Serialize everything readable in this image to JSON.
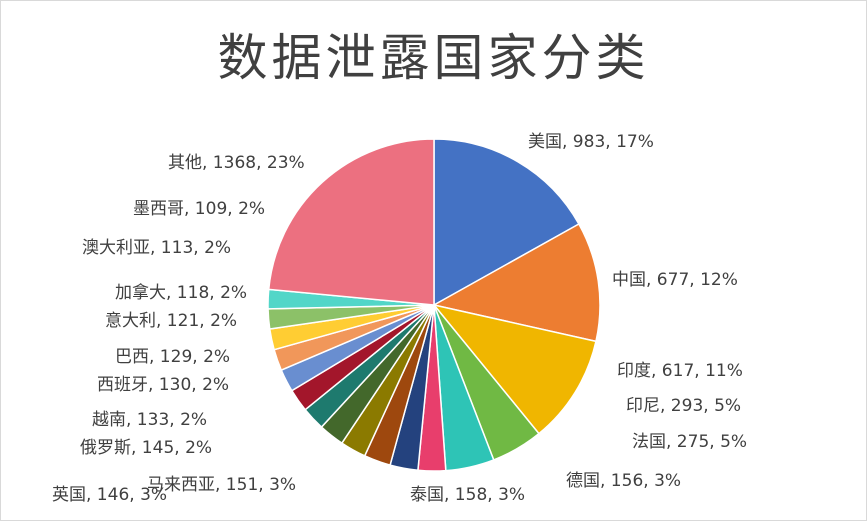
{
  "chart_data": {
    "type": "pie",
    "title": "数据泄露国家分类",
    "slices": [
      {
        "label": "美国",
        "value": 983,
        "pct": "17%",
        "color": "#4472C4"
      },
      {
        "label": "中国",
        "value": 677,
        "pct": "12%",
        "color": "#ED7D31"
      },
      {
        "label": "印度",
        "value": 617,
        "pct": "11%",
        "color": "#F0B600"
      },
      {
        "label": "印尼",
        "value": 293,
        "pct": "5%",
        "color": "#70B944"
      },
      {
        "label": "法国",
        "value": 275,
        "pct": "5%",
        "color": "#2EC4B6"
      },
      {
        "label": "德国",
        "value": 156,
        "pct": "3%",
        "color": "#E83E6C"
      },
      {
        "label": "泰国",
        "value": 158,
        "pct": "3%",
        "color": "#24427E"
      },
      {
        "label": "马来西亚",
        "value": 151,
        "pct": "3%",
        "color": "#9E480E"
      },
      {
        "label": "英国",
        "value": 146,
        "pct": "3%",
        "color": "#8B7A00"
      },
      {
        "label": "俄罗斯",
        "value": 145,
        "pct": "2%",
        "color": "#43682B"
      },
      {
        "label": "越南",
        "value": 133,
        "pct": "2%",
        "color": "#1E7A6E"
      },
      {
        "label": "西班牙",
        "value": 130,
        "pct": "2%",
        "color": "#A3162B"
      },
      {
        "label": "巴西",
        "value": 129,
        "pct": "2%",
        "color": "#698ED0"
      },
      {
        "label": "意大利",
        "value": 121,
        "pct": "2%",
        "color": "#F1975A"
      },
      {
        "label": "加拿大",
        "value": 118,
        "pct": "2%",
        "color": "#FFCD33"
      },
      {
        "label": "澳大利亚",
        "value": 113,
        "pct": "2%",
        "color": "#8CC168"
      },
      {
        "label": "墨西哥",
        "value": 109,
        "pct": "2%",
        "color": "#52D6C8"
      },
      {
        "label": "其他",
        "value": 1368,
        "pct": "23%",
        "color": "#EC7080"
      }
    ]
  }
}
